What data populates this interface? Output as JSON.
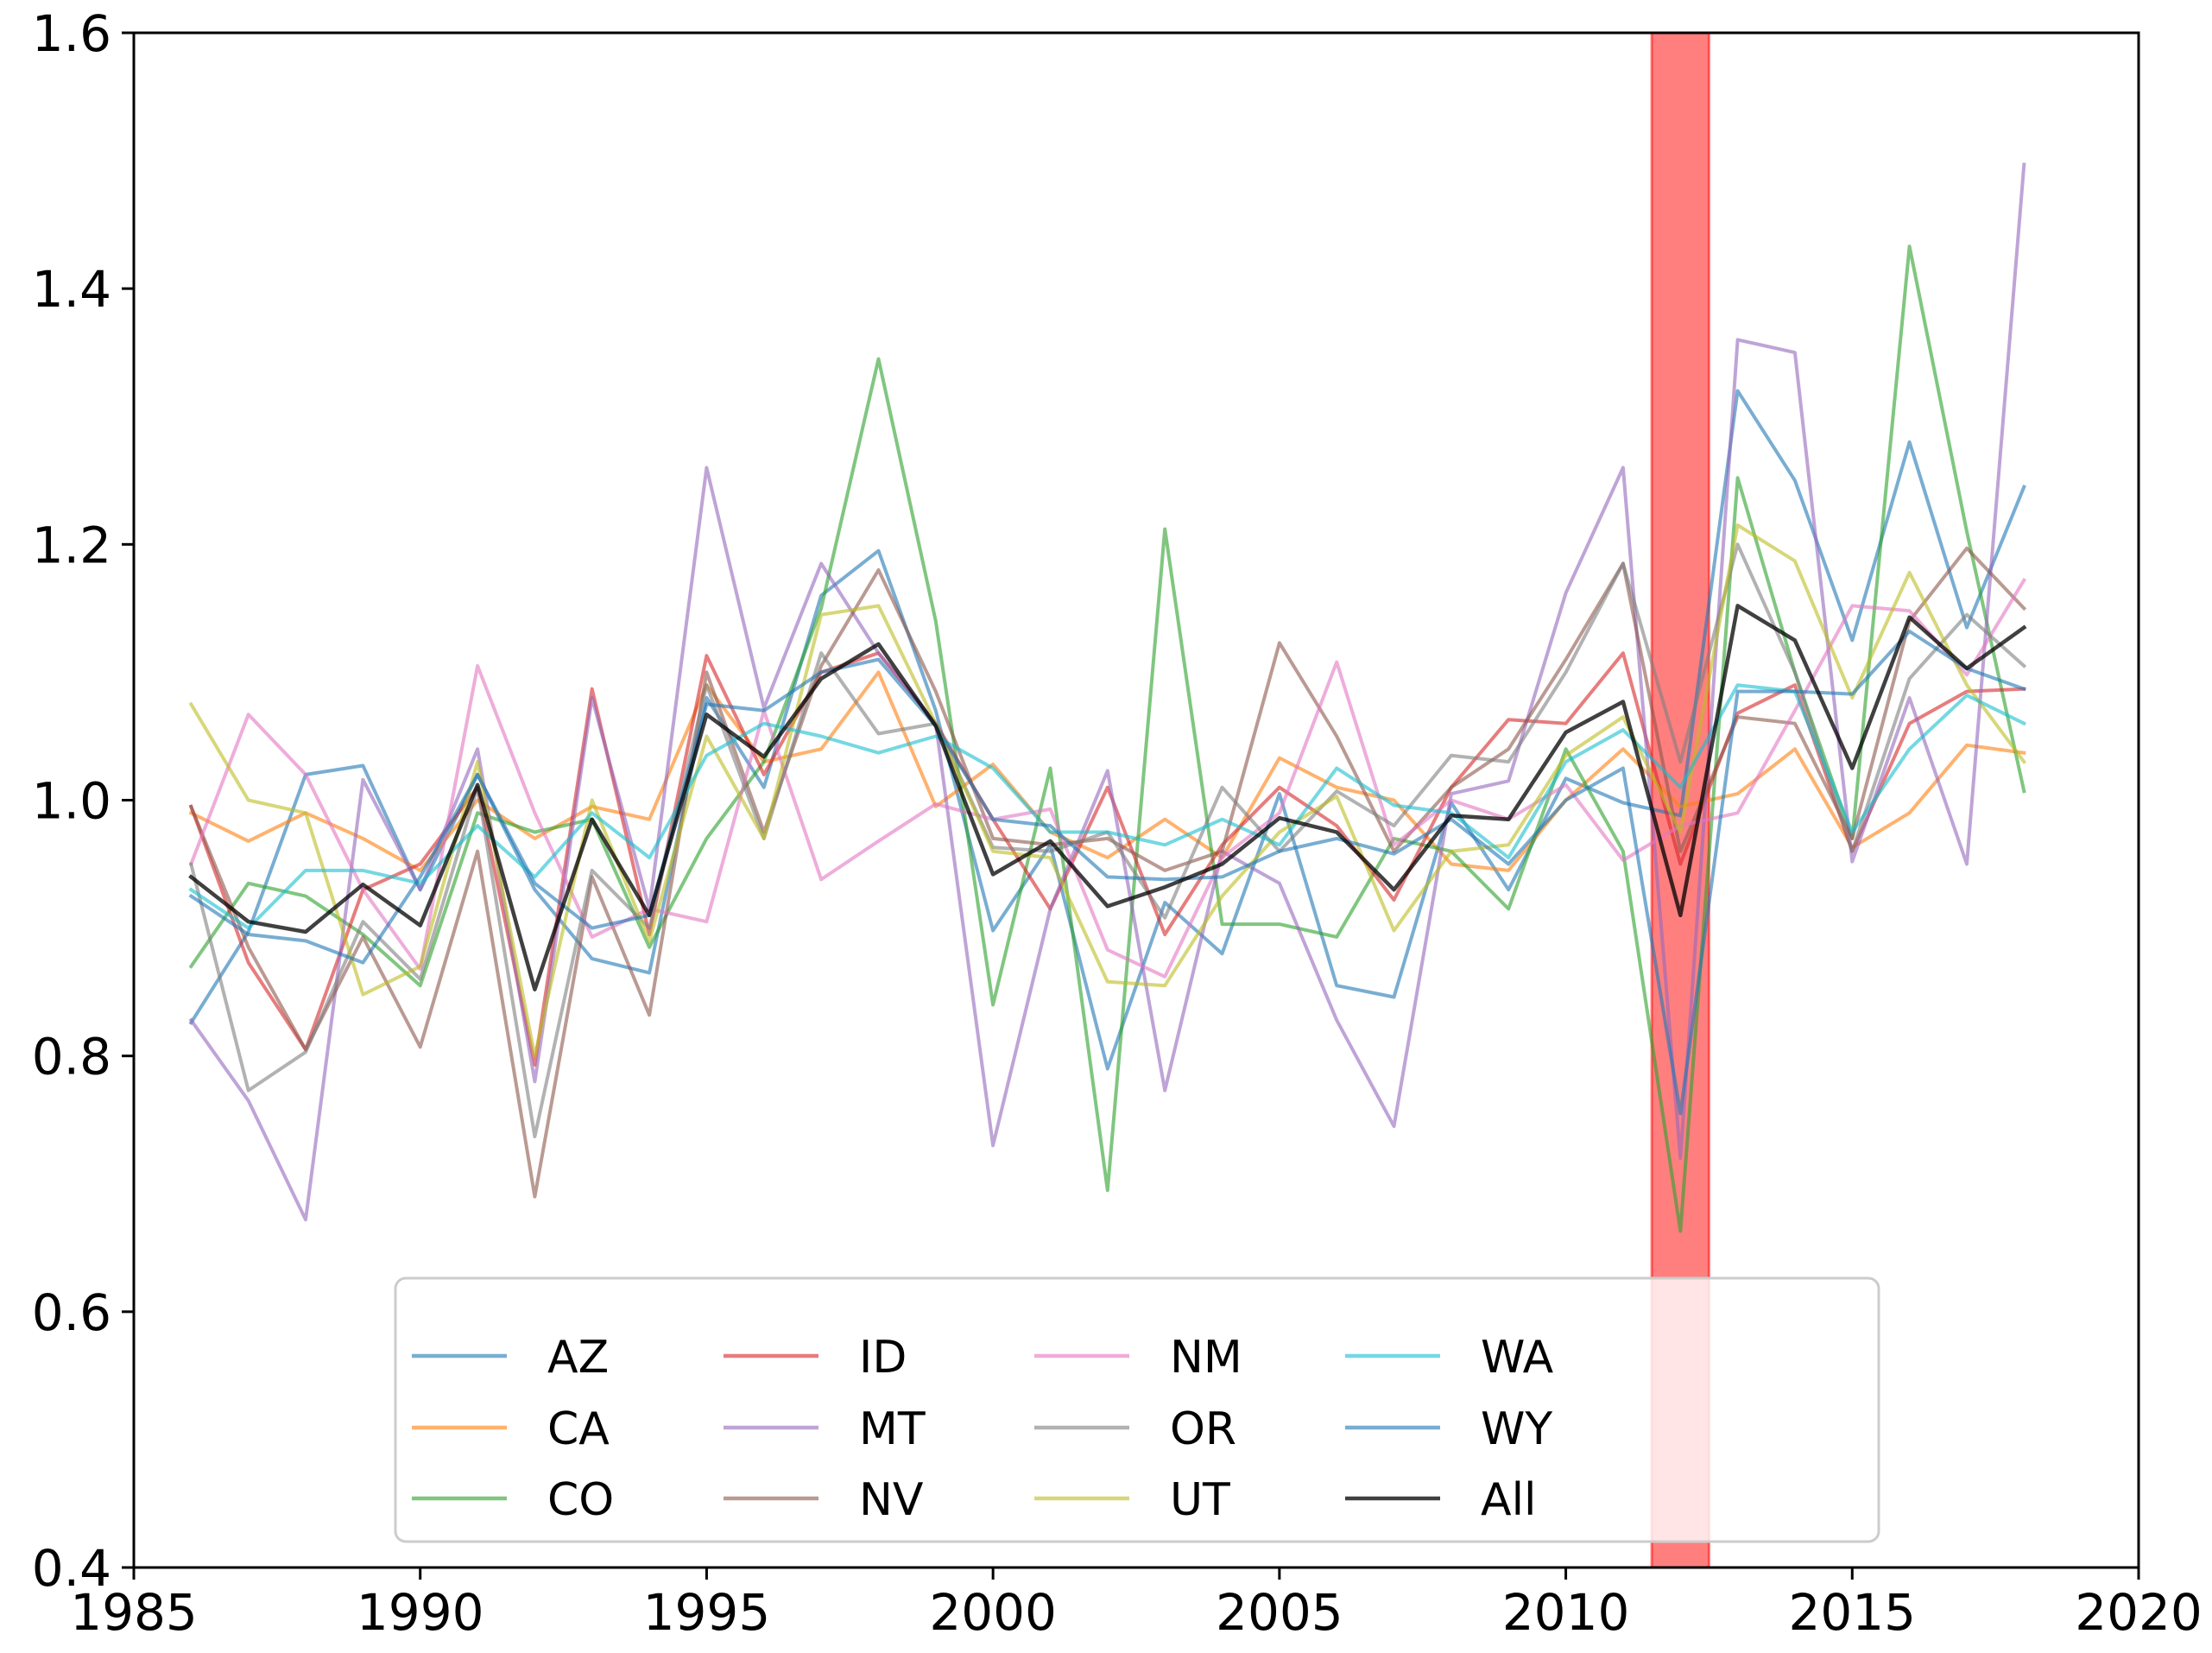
{
  "chart_data": {
    "type": "line",
    "title": "",
    "xlabel": "",
    "ylabel": "",
    "xlim": [
      1985,
      2020
    ],
    "ylim": [
      0.4,
      1.6
    ],
    "x_ticks": [
      1985,
      1990,
      1995,
      2000,
      2005,
      2010,
      2015,
      2020
    ],
    "x_tick_labels": [
      "1985",
      "1990",
      "1995",
      "2000",
      "2005",
      "2010",
      "2015",
      "2020"
    ],
    "y_ticks": [
      0.4,
      0.6,
      0.8,
      1.0,
      1.2,
      1.4,
      1.6
    ],
    "y_tick_labels": [
      "0.4",
      "0.6",
      "0.8",
      "1.0",
      "1.2",
      "1.4",
      "1.6"
    ],
    "grid": false,
    "legend_position": "bottom-center",
    "highlight_band": {
      "x_start": 2011.5,
      "x_end": 2012.5,
      "color": "#ff0000"
    },
    "x": [
      1986,
      1987,
      1988,
      1989,
      1990,
      1991,
      1992,
      1993,
      1994,
      1995,
      1996,
      1997,
      1998,
      1999,
      2000,
      2001,
      2002,
      2003,
      2004,
      2005,
      2006,
      2007,
      2008,
      2009,
      2010,
      2011,
      2012,
      2013,
      2014,
      2015,
      2016,
      2017,
      2018
    ],
    "series": [
      {
        "name": "AZ",
        "color": "#1f77b4",
        "values": [
          0.826,
          0.897,
          1.02,
          1.027,
          0.93,
          1.02,
          0.93,
          0.876,
          0.865,
          1.08,
          1.01,
          1.16,
          1.195,
          1.07,
          0.898,
          0.965,
          0.79,
          0.92,
          0.88,
          1.005,
          0.855,
          0.846,
          0.998,
          0.93,
          1.017,
          0.998,
          0.988,
          1.32,
          1.25,
          1.125,
          1.28,
          1.135,
          1.245
        ]
      },
      {
        "name": "CA",
        "color": "#ff7f0e",
        "values": [
          0.99,
          0.968,
          0.99,
          0.97,
          0.945,
          1.0,
          0.97,
          0.995,
          0.985,
          1.09,
          1.03,
          1.04,
          1.1,
          0.995,
          1.028,
          0.975,
          0.955,
          0.985,
          0.955,
          1.033,
          1.01,
          1.0,
          0.95,
          0.945,
          1.0,
          1.04,
          0.995,
          1.005,
          1.04,
          0.963,
          0.99,
          1.043,
          1.037
        ]
      },
      {
        "name": "CO",
        "color": "#2ca02c",
        "values": [
          0.87,
          0.935,
          0.925,
          0.895,
          0.855,
          0.99,
          0.975,
          0.985,
          0.885,
          0.97,
          1.03,
          1.15,
          1.345,
          1.14,
          0.84,
          1.025,
          0.695,
          1.212,
          0.903,
          0.903,
          0.893,
          0.97,
          0.96,
          0.915,
          1.04,
          0.96,
          0.663,
          1.252,
          1.1,
          0.97,
          1.433,
          1.21,
          1.007
        ]
      },
      {
        "name": "ID",
        "color": "#d62728",
        "values": [
          0.995,
          0.873,
          0.805,
          0.93,
          0.95,
          1.01,
          0.793,
          1.087,
          0.895,
          1.113,
          1.02,
          1.1,
          1.115,
          1.06,
          0.985,
          0.915,
          1.01,
          0.895,
          0.965,
          1.01,
          0.98,
          0.922,
          1.01,
          1.063,
          1.06,
          1.115,
          0.95,
          1.068,
          1.09,
          0.96,
          1.06,
          1.085,
          1.087
        ]
      },
      {
        "name": "MT",
        "color": "#9467bd",
        "values": [
          0.828,
          0.765,
          0.672,
          1.016,
          0.93,
          1.04,
          0.78,
          1.08,
          0.915,
          1.26,
          1.072,
          1.185,
          1.115,
          1.06,
          0.73,
          0.915,
          1.023,
          0.773,
          0.96,
          0.935,
          0.828,
          0.745,
          1.005,
          1.015,
          1.162,
          1.26,
          0.72,
          1.36,
          1.35,
          0.952,
          1.08,
          0.95,
          1.497
        ]
      },
      {
        "name": "NV",
        "color": "#8c564b",
        "values": [
          0.995,
          0.885,
          0.805,
          0.893,
          0.807,
          0.96,
          0.69,
          0.94,
          0.832,
          1.1,
          0.975,
          1.105,
          1.18,
          1.085,
          0.97,
          0.965,
          0.97,
          0.945,
          0.96,
          1.123,
          1.05,
          0.96,
          1.01,
          1.04,
          1.11,
          1.185,
          0.96,
          1.065,
          1.06,
          0.97,
          1.14,
          1.197,
          1.15
        ]
      },
      {
        "name": "NM",
        "color": "#e377c2",
        "values": [
          0.95,
          1.067,
          1.02,
          0.93,
          0.868,
          1.105,
          0.99,
          0.893,
          0.915,
          0.905,
          1.07,
          0.938,
          0.968,
          0.997,
          0.985,
          0.993,
          0.883,
          0.862,
          0.955,
          0.99,
          1.108,
          0.965,
          1.0,
          0.985,
          1.012,
          0.953,
          0.98,
          0.99,
          1.07,
          1.152,
          1.148,
          1.098,
          1.172
        ]
      },
      {
        "name": "OR",
        "color": "#7f7f7f",
        "values": [
          0.95,
          0.773,
          0.803,
          0.905,
          0.86,
          1.01,
          0.737,
          0.945,
          0.9,
          1.09,
          0.97,
          1.115,
          1.052,
          1.06,
          0.963,
          0.96,
          0.975,
          0.908,
          1.01,
          0.96,
          1.007,
          0.98,
          1.035,
          1.03,
          1.1,
          1.185,
          1.03,
          1.2,
          1.1,
          0.96,
          1.095,
          1.145,
          1.105
        ]
      },
      {
        "name": "UT",
        "color": "#bcbd22",
        "values": [
          1.075,
          1.0,
          0.99,
          0.848,
          0.87,
          1.03,
          0.8,
          1.0,
          0.89,
          1.05,
          0.97,
          1.145,
          1.152,
          1.06,
          0.96,
          0.955,
          0.858,
          0.855,
          0.925,
          0.975,
          1.003,
          0.898,
          0.96,
          0.965,
          1.035,
          1.065,
          0.975,
          1.215,
          1.187,
          1.08,
          1.178,
          1.09,
          1.03
        ]
      },
      {
        "name": "WA",
        "color": "#17becf",
        "values": [
          0.93,
          0.9,
          0.945,
          0.945,
          0.935,
          0.98,
          0.94,
          0.99,
          0.955,
          1.035,
          1.06,
          1.05,
          1.037,
          1.05,
          1.025,
          0.975,
          0.975,
          0.965,
          0.985,
          0.965,
          1.025,
          0.996,
          0.99,
          0.955,
          1.03,
          1.055,
          1.01,
          1.09,
          1.085,
          0.975,
          1.04,
          1.082,
          1.06
        ]
      },
      {
        "name": "WY",
        "color": "#1f77b4",
        "values": [
          0.925,
          0.895,
          0.89,
          0.873,
          0.94,
          1.02,
          0.935,
          0.9,
          0.91,
          1.075,
          1.07,
          1.1,
          1.11,
          1.058,
          0.985,
          0.98,
          0.94,
          0.938,
          0.94,
          0.96,
          0.97,
          0.958,
          0.985,
          0.95,
          1.0,
          1.025,
          0.755,
          1.085,
          1.085,
          1.083,
          1.132,
          1.103,
          1.087
        ]
      },
      {
        "name": "All",
        "color": "#000000",
        "values": [
          0.94,
          0.905,
          0.897,
          0.934,
          0.902,
          1.012,
          0.852,
          0.985,
          0.91,
          1.067,
          1.034,
          1.095,
          1.122,
          1.058,
          0.942,
          0.968,
          0.917,
          0.932,
          0.95,
          0.986,
          0.975,
          0.93,
          0.988,
          0.985,
          1.053,
          1.077,
          0.91,
          1.152,
          1.125,
          1.025,
          1.143,
          1.103,
          1.135
        ]
      }
    ]
  }
}
